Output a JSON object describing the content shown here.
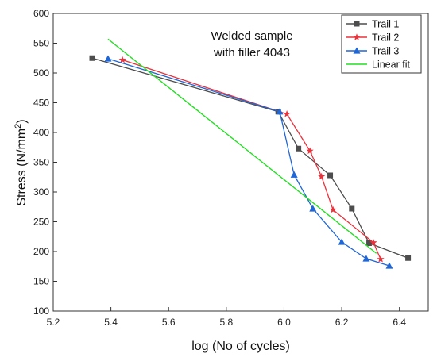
{
  "chart_data": {
    "type": "line",
    "title": "",
    "annotation": [
      "Welded sample",
      "with filler 4043"
    ],
    "xlabel": "log (No of cycles)",
    "ylabel_main": "Stress (N/mm",
    "ylabel_sup": "2",
    "ylabel_tail": ")",
    "xlim": [
      5.2,
      6.5
    ],
    "ylim": [
      100,
      600
    ],
    "xticks": [
      "5.2",
      "5.4",
      "5.6",
      "5.8",
      "6.0",
      "6.2",
      "6.4"
    ],
    "yticks": [
      "100",
      "150",
      "200",
      "250",
      "300",
      "350",
      "400",
      "450",
      "500",
      "550",
      "600"
    ],
    "grid": false,
    "legend_position": "top-right",
    "series": [
      {
        "name": "Trail 1",
        "color": "#4d4d4d",
        "marker": "square",
        "x": [
          5.335,
          5.98,
          6.05,
          6.16,
          6.235,
          6.295,
          6.43
        ],
        "y": [
          525,
          435,
          373,
          328,
          272,
          214,
          189
        ]
      },
      {
        "name": "Trail 2",
        "color": "#e8323c",
        "marker": "star",
        "x": [
          5.44,
          6.01,
          6.09,
          6.13,
          6.17,
          6.31,
          6.335
        ],
        "y": [
          522,
          431,
          369,
          326,
          270,
          215,
          187
        ]
      },
      {
        "name": "Trail 3",
        "color": "#1f66d6",
        "marker": "triangle",
        "x": [
          5.39,
          5.985,
          6.035,
          6.1,
          6.2,
          6.285,
          6.365
        ],
        "y": [
          524,
          435,
          329,
          272,
          216,
          188,
          176
        ]
      },
      {
        "name": "Linear fit",
        "color": "#22dd22",
        "marker": "none",
        "x": [
          5.39,
          6.32
        ],
        "y": [
          557,
          197
        ]
      }
    ]
  }
}
